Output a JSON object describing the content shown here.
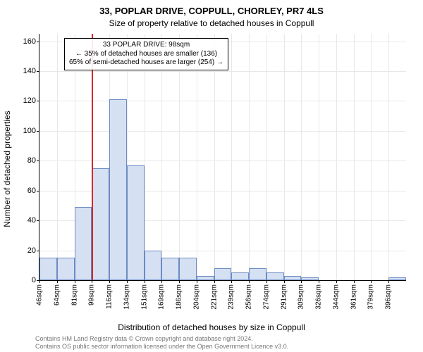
{
  "title_main": "33, POPLAR DRIVE, COPPULL, CHORLEY, PR7 4LS",
  "title_sub": "Size of property relative to detached houses in Coppull",
  "ylabel": "Number of detached properties",
  "xlabel": "Distribution of detached houses by size in Coppull",
  "footer_line1": "Contains HM Land Registry data © Crown copyright and database right 2024.",
  "footer_line2": "Contains OS public sector information licensed under the Open Government Licence v3.0.",
  "chart": {
    "type": "histogram",
    "ylim": [
      0,
      165
    ],
    "ytick_step": 20,
    "yticks": [
      0,
      20,
      40,
      60,
      80,
      100,
      120,
      140,
      160
    ],
    "xticks": [
      "46sqm",
      "64sqm",
      "81sqm",
      "99sqm",
      "116sqm",
      "134sqm",
      "151sqm",
      "169sqm",
      "186sqm",
      "204sqm",
      "221sqm",
      "239sqm",
      "256sqm",
      "274sqm",
      "291sqm",
      "309sqm",
      "326sqm",
      "344sqm",
      "361sqm",
      "379sqm",
      "396sqm"
    ],
    "bar_values": [
      15,
      15,
      49,
      75,
      121,
      77,
      20,
      15,
      15,
      3,
      8,
      5,
      8,
      5,
      3,
      2,
      0,
      0,
      0,
      0,
      2
    ],
    "bar_fill": "#d5e0f2",
    "bar_stroke": "#6b8bc4",
    "grid_color": "#e8e8e8",
    "background": "#ffffff",
    "marker_color": "#d62728",
    "marker_bin_index": 3,
    "annotation": {
      "line1": "33 POPLAR DRIVE: 98sqm",
      "line2": "← 35% of detached houses are smaller (136)",
      "line3": "65% of semi-detached houses are larger (254) →"
    },
    "title_fontsize": 13,
    "label_fontsize": 12,
    "tick_fontsize": 11
  }
}
